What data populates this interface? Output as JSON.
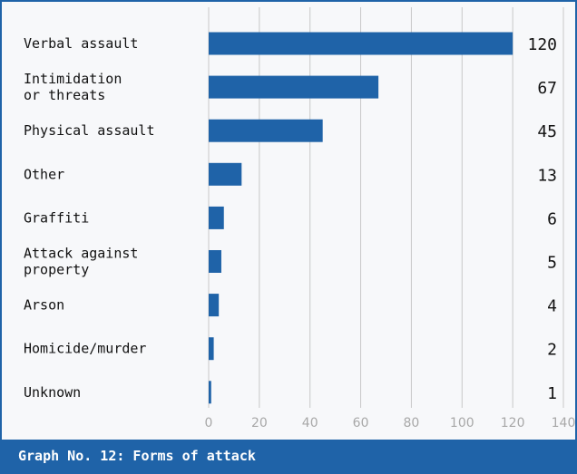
{
  "caption": "Graph No. 12: Forms of attack",
  "colors": {
    "bar": "#1f63a8",
    "grid": "#c8c8c8",
    "tick": "#a8a8a8",
    "caption_bg": "#1f63a8"
  },
  "chart_data": {
    "type": "bar",
    "orientation": "horizontal",
    "title": "",
    "xlabel": "",
    "ylabel": "",
    "categories": [
      [
        "Verbal assault"
      ],
      [
        "Intimidation",
        "or threats"
      ],
      [
        "Physical assault"
      ],
      [
        "Other"
      ],
      [
        "Graffiti"
      ],
      [
        "Attack against",
        "property"
      ],
      [
        "Arson"
      ],
      [
        "Homicide/murder"
      ],
      [
        "Unknown"
      ]
    ],
    "values": [
      120,
      67,
      45,
      13,
      6,
      5,
      4,
      2,
      1
    ],
    "xlim": [
      0,
      140
    ],
    "xticks": [
      0,
      20,
      40,
      60,
      80,
      100,
      120,
      140
    ],
    "grid": true,
    "legend": "none"
  }
}
